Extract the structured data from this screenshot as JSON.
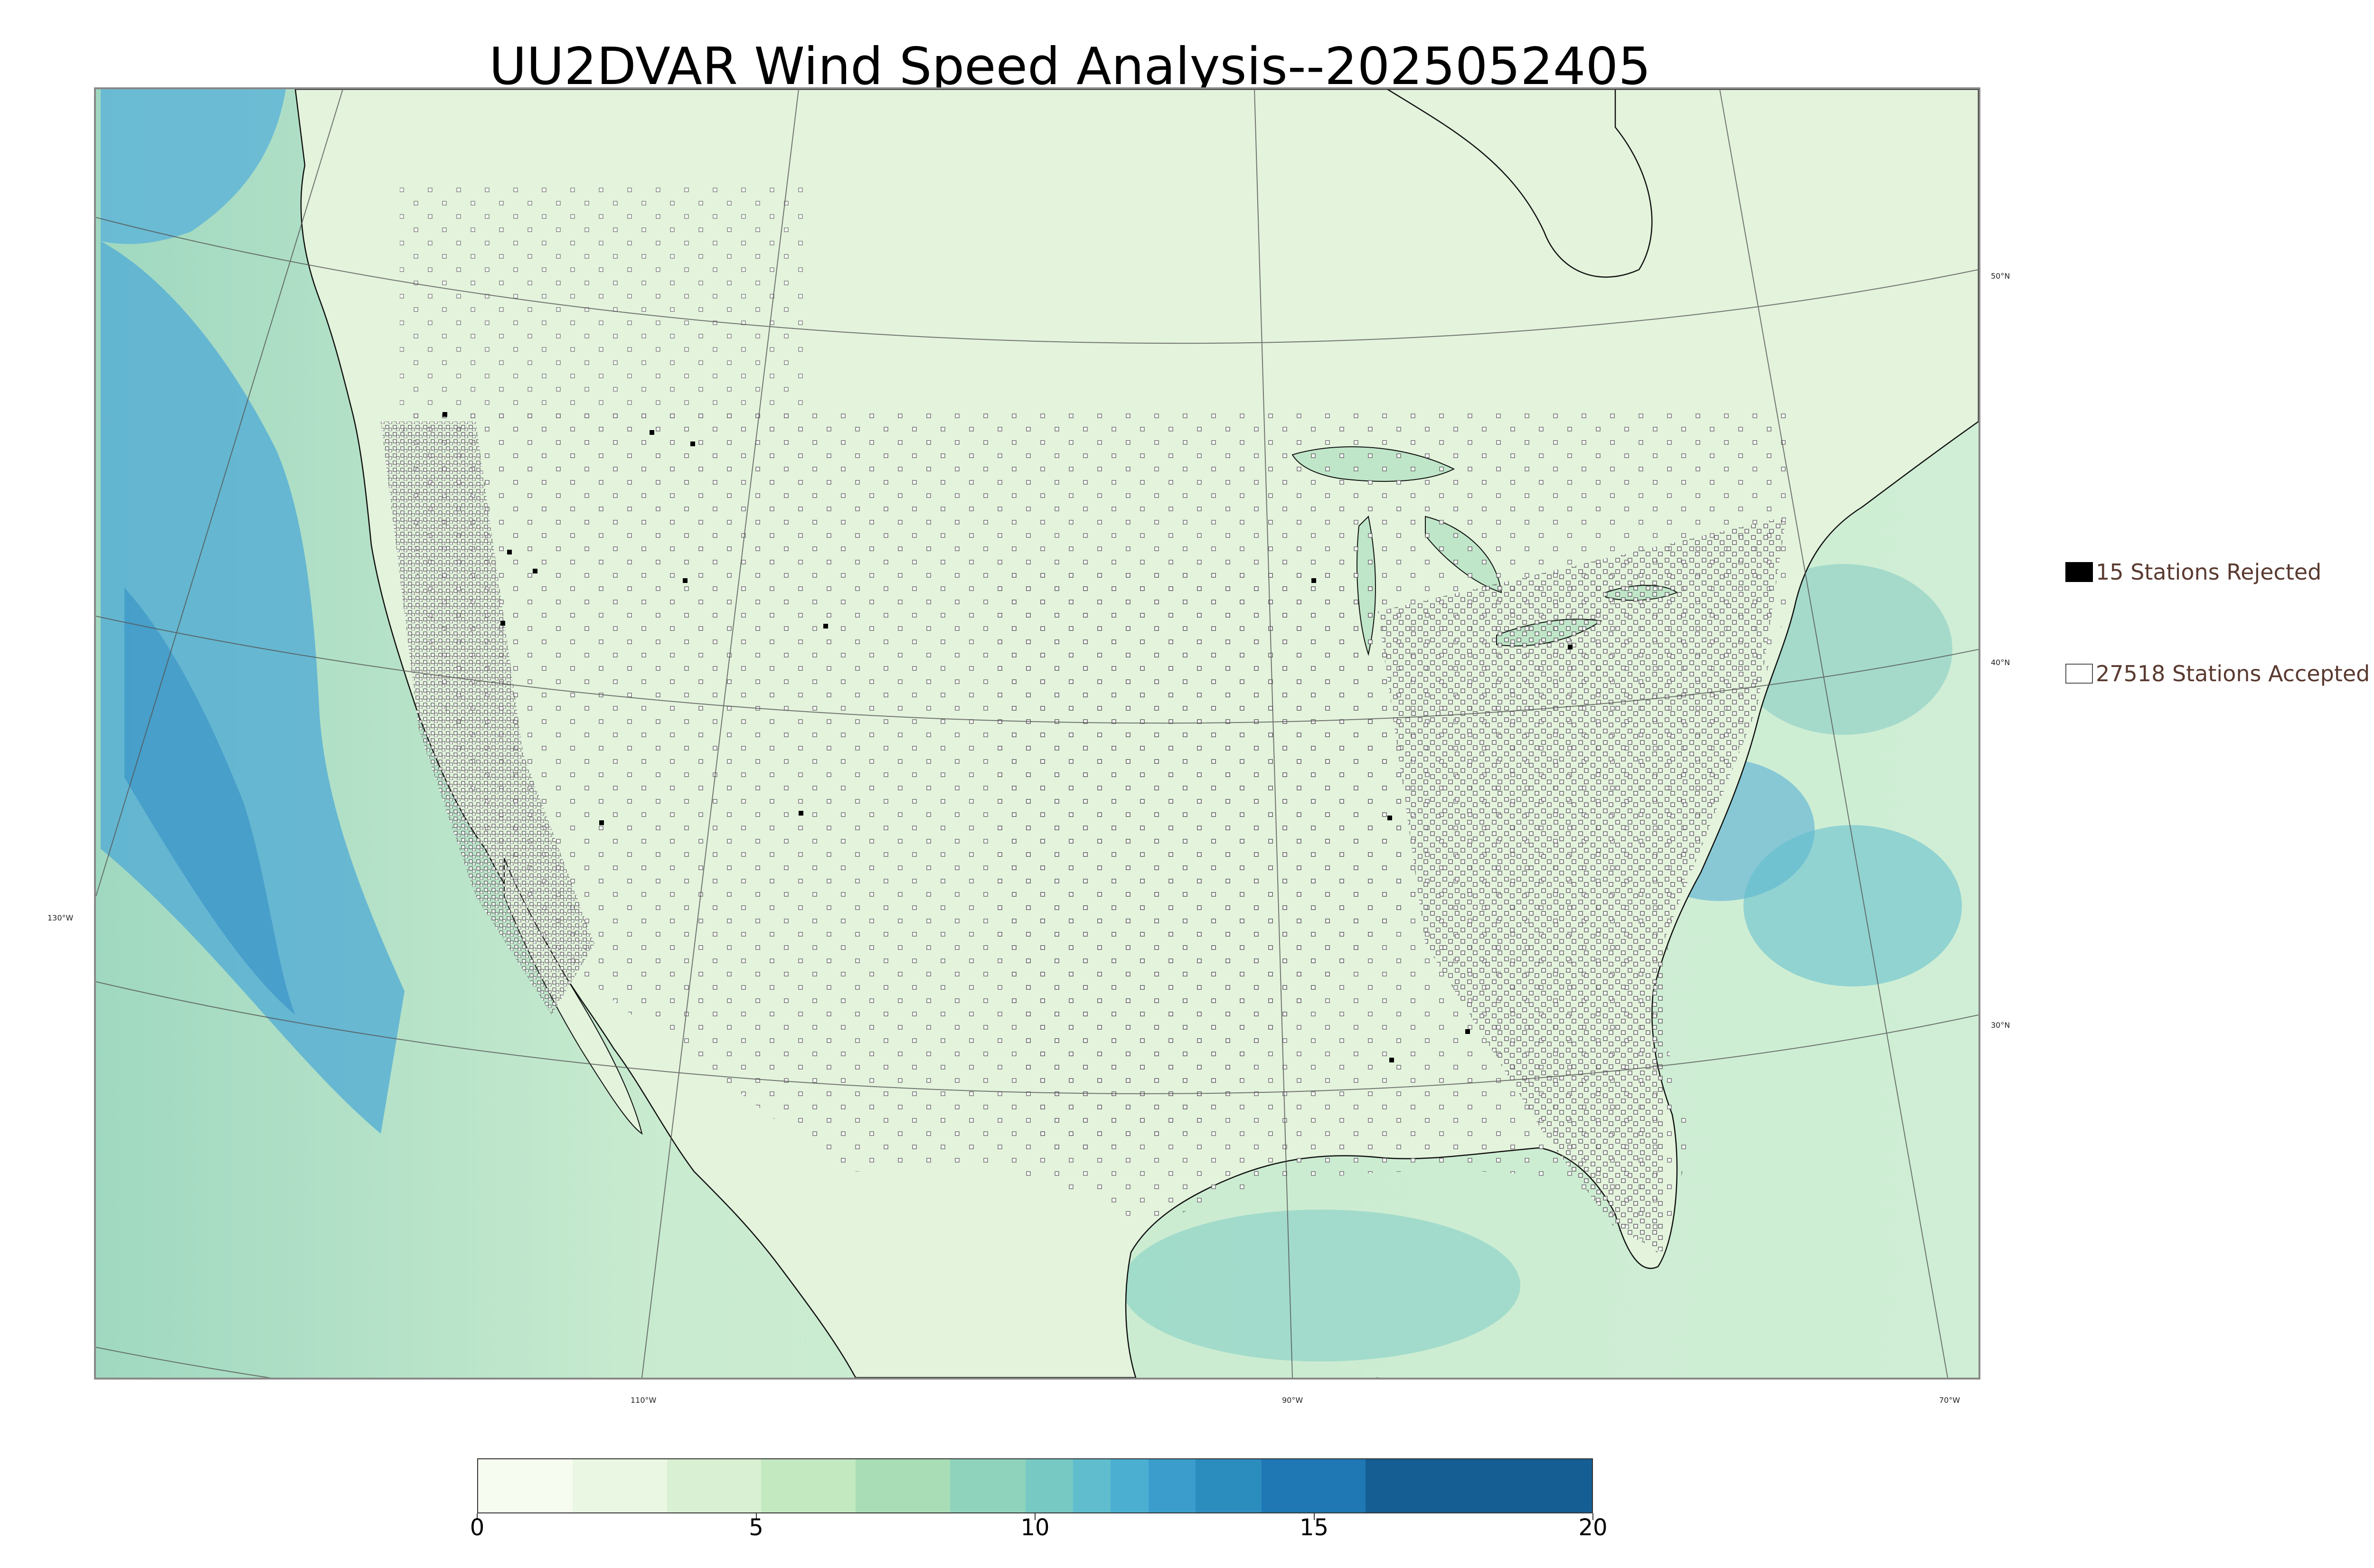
{
  "title": "UU2DVAR Wind Speed Analysis--2025052405",
  "legend": {
    "rejected_label": "15 Stations Rejected",
    "accepted_label": "27518 Stations Accepted",
    "rejected_color": "#000000",
    "accepted_color": "#ffffff"
  },
  "graticule": {
    "lat_labels": [
      "50°N",
      "40°N",
      "30°N"
    ],
    "lon_labels": [
      "130°W",
      "110°W",
      "90°W",
      "70°W"
    ]
  },
  "colorbar": {
    "ticks": [
      "0",
      "5",
      "10",
      "15",
      "20"
    ],
    "range": [
      0,
      20
    ],
    "colors": [
      "#f7fcf0",
      "#e9f7e3",
      "#d9f0d3",
      "#c3e9c0",
      "#a8ddb5",
      "#8fd3bd",
      "#77c9c4",
      "#5fbdcd",
      "#4bafd2",
      "#3a9dcb",
      "#2b8cbe",
      "#1f78b4",
      "#155e93"
    ]
  },
  "map_colors": {
    "land": "#e4f3dc",
    "ocean": "#b6e2c7",
    "strong_wind": "#3a9dcb",
    "coast": "#000000",
    "border": "#333333"
  }
}
